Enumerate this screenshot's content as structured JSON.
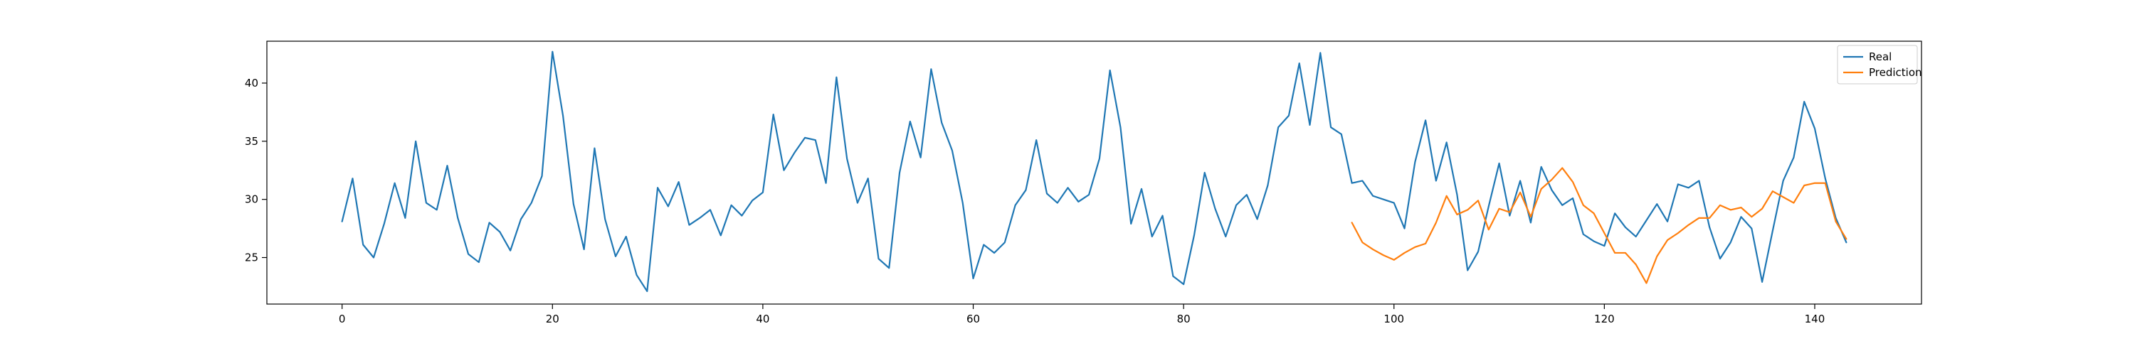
{
  "chart_data": {
    "type": "line",
    "title": "",
    "xlabel": "",
    "ylabel": "",
    "xlim": [
      -7.15,
      150.15
    ],
    "ylim": [
      21.0,
      43.6
    ],
    "x_ticks": [
      0,
      20,
      40,
      60,
      80,
      100,
      120,
      140
    ],
    "y_ticks": [
      25,
      30,
      35,
      40
    ],
    "x_tick_labels": [
      "0",
      "20",
      "40",
      "60",
      "80",
      "100",
      "120",
      "140"
    ],
    "y_tick_labels": [
      "25",
      "30",
      "35",
      "40"
    ],
    "grid": false,
    "legend": "top-right",
    "series": [
      {
        "name": "Real",
        "color": "#1f77b4",
        "x_start": 0,
        "values": [
          28.1,
          31.8,
          26.1,
          25.0,
          27.9,
          31.4,
          28.4,
          35.0,
          29.7,
          29.1,
          32.9,
          28.4,
          25.3,
          24.6,
          28.0,
          27.2,
          25.6,
          28.3,
          29.7,
          32.0,
          42.7,
          37.2,
          29.6,
          25.7,
          34.4,
          28.3,
          25.1,
          26.8,
          23.5,
          22.1,
          31.0,
          29.4,
          31.5,
          27.8,
          28.4,
          29.1,
          26.9,
          29.5,
          28.6,
          29.9,
          30.6,
          37.3,
          32.5,
          34.0,
          35.3,
          35.1,
          31.4,
          40.5,
          33.5,
          29.7,
          31.8,
          24.9,
          24.1,
          32.3,
          36.7,
          33.6,
          41.2,
          36.6,
          34.2,
          29.7,
          23.2,
          26.1,
          25.4,
          26.3,
          29.5,
          30.8,
          35.1,
          30.5,
          29.7,
          31.0,
          29.8,
          30.4,
          33.5,
          41.1,
          36.2,
          27.9,
          30.9,
          26.8,
          28.6,
          23.4,
          22.7,
          26.9,
          32.3,
          29.2,
          26.8,
          29.5,
          30.4,
          28.3,
          31.2,
          36.2,
          37.2,
          41.7,
          36.4,
          42.6,
          36.2,
          35.6,
          31.4,
          31.6,
          30.3,
          30.0,
          29.7,
          27.5,
          33.2,
          36.8,
          31.6,
          34.9,
          30.4,
          23.9,
          25.5,
          29.4,
          33.1,
          28.6,
          31.6,
          28.0,
          32.8,
          30.8,
          29.5,
          30.1,
          27.0,
          26.4,
          26.0,
          28.8,
          27.6,
          26.8,
          28.2,
          29.6,
          28.1,
          31.3,
          31.0,
          31.6,
          27.6,
          24.9,
          26.3,
          28.5,
          27.5,
          22.9,
          27.3,
          31.6,
          33.6,
          38.4,
          36.1,
          31.8,
          28.4,
          26.3
        ]
      },
      {
        "name": "Prediction",
        "color": "#ff7f0e",
        "x_start": 96,
        "values": [
          28.0,
          26.3,
          25.7,
          25.2,
          24.8,
          25.4,
          25.9,
          26.2,
          28.0,
          30.3,
          28.7,
          29.1,
          29.9,
          27.4,
          29.2,
          28.9,
          30.6,
          28.5,
          30.9,
          31.7,
          32.7,
          31.5,
          29.5,
          28.8,
          27.1,
          25.4,
          25.4,
          24.4,
          22.8,
          25.1,
          26.5,
          27.1,
          27.8,
          28.4,
          28.4,
          29.5,
          29.1,
          29.3,
          28.5,
          29.2,
          30.7,
          30.2,
          29.7,
          31.2,
          31.4,
          31.4,
          28.1,
          26.6
        ]
      }
    ]
  }
}
